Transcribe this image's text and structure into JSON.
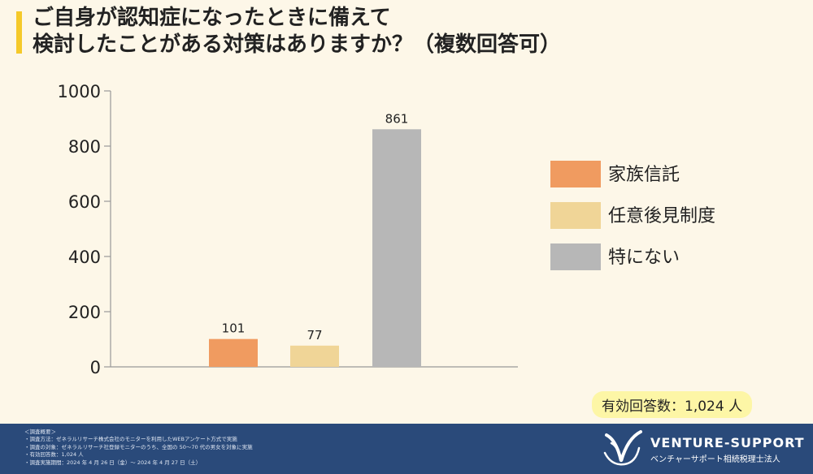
{
  "title": {
    "line1": "ご自身が認知症になったときに備えて",
    "line2": "検討したことがある対策はありますか？（複数回答可）"
  },
  "respondents": "有効回答数：1,024 人",
  "chart_data": {
    "type": "bar",
    "categories": [
      "家族信託",
      "任意後見制度",
      "特にない"
    ],
    "values": [
      101,
      77,
      861
    ],
    "colors": [
      "#f09b60",
      "#f0d597",
      "#b7b7b7"
    ],
    "ylim": [
      0,
      1000
    ],
    "yticks": [
      0,
      200,
      400,
      600,
      800,
      1000
    ],
    "legend": "right",
    "grid": false
  },
  "footer": {
    "notes": [
      "＜調査概要＞",
      "・調査方法：ゼネラルリサーチ株式会社のモニターを利用したWEBアンケート方式で実施",
      "・調査の対象：ゼネラルリサーチ社登録モニターのうち、全国の 50～70 代の男女を対象に実施",
      "・有効回答数：1,024 人",
      "・調査実施期間：2024 年 4 月 26 日（金）～ 2024 年 4 月 27 日（土）"
    ],
    "brand": "VENTURE-SUPPORT",
    "brand_sub": "ベンチャーサポート相続税理士法人",
    "logo_icon": "vs-logo-icon"
  }
}
